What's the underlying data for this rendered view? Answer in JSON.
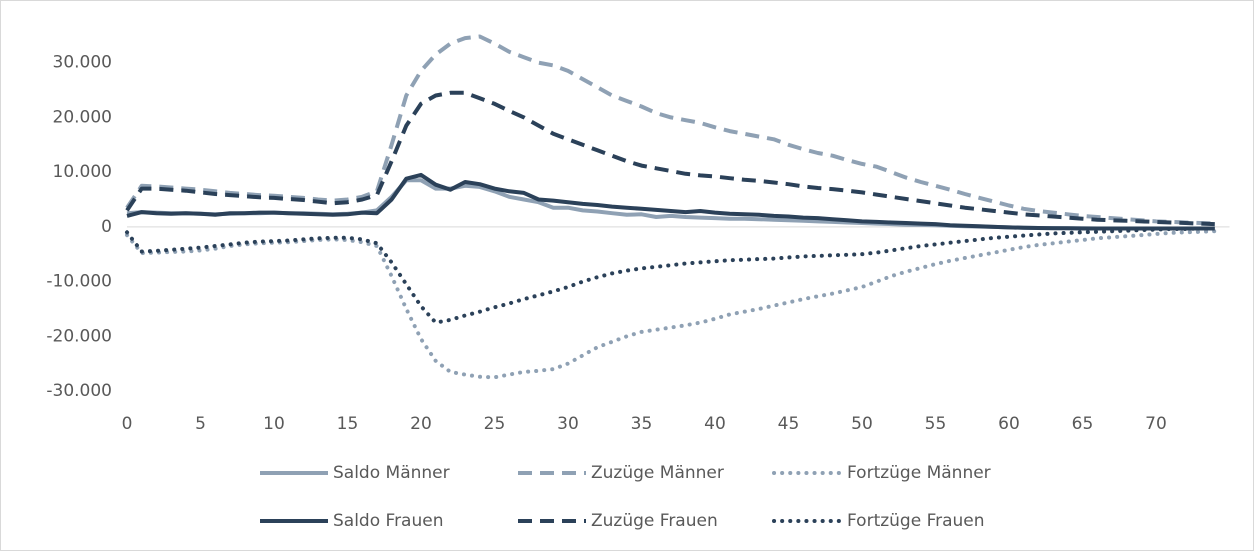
{
  "chart_data": {
    "type": "line",
    "x": [
      0,
      1,
      2,
      3,
      4,
      5,
      6,
      7,
      8,
      9,
      10,
      11,
      12,
      13,
      14,
      15,
      16,
      17,
      18,
      19,
      20,
      21,
      22,
      23,
      24,
      25,
      26,
      27,
      28,
      29,
      30,
      31,
      32,
      33,
      34,
      35,
      36,
      37,
      38,
      39,
      40,
      41,
      42,
      43,
      44,
      45,
      46,
      47,
      48,
      49,
      50,
      51,
      52,
      53,
      54,
      55,
      56,
      57,
      58,
      59,
      60,
      61,
      62,
      63,
      64,
      65,
      66,
      67,
      68,
      69,
      70,
      71,
      72,
      73,
      74
    ],
    "xlim": [
      0,
      75
    ],
    "xticks": [
      0,
      5,
      10,
      15,
      20,
      25,
      30,
      35,
      40,
      45,
      50,
      55,
      60,
      65,
      70
    ],
    "ylim": [
      -30000,
      40000
    ],
    "yticks": [
      {
        "value": -30000,
        "label": "-30.000"
      },
      {
        "value": -20000,
        "label": "-20.000"
      },
      {
        "value": -10000,
        "label": "-10.000"
      },
      0,
      {
        "value": 10000,
        "label": "10.000"
      },
      {
        "value": 20000,
        "label": "20.000"
      },
      {
        "value": 30000,
        "label": "30.000"
      }
    ],
    "grid": false,
    "legend": "bottom",
    "series": [
      {
        "name": "Saldo Männer",
        "color": "#8fa1b4",
        "dash": "solid",
        "values": [
          2500,
          2700,
          2600,
          2500,
          2500,
          2400,
          2300,
          2400,
          2500,
          2500,
          2600,
          2500,
          2500,
          2400,
          2300,
          2400,
          2600,
          3000,
          5500,
          8500,
          8500,
          7000,
          7000,
          7500,
          7300,
          6500,
          5500,
          5000,
          4500,
          3500,
          3500,
          3000,
          2800,
          2500,
          2200,
          2300,
          1800,
          2000,
          1800,
          1700,
          1600,
          1500,
          1500,
          1400,
          1300,
          1200,
          1100,
          1000,
          900,
          800,
          700,
          600,
          500,
          400,
          350,
          300,
          200,
          100,
          50,
          0,
          -100,
          -150,
          -200,
          -200,
          -250,
          -250,
          -300,
          -300,
          -300,
          -300,
          -300,
          -300,
          -300,
          -300,
          -300
        ]
      },
      {
        "name": "Zuzüge Männer",
        "color": "#8fa1b4",
        "dash": "dashed",
        "values": [
          3500,
          7500,
          7400,
          7200,
          7000,
          6800,
          6500,
          6200,
          6000,
          5800,
          5700,
          5500,
          5300,
          5000,
          4800,
          5000,
          5500,
          6500,
          15000,
          24000,
          28500,
          31500,
          33500,
          34500,
          34800,
          33500,
          32000,
          31000,
          30000,
          29500,
          28500,
          27000,
          25500,
          24000,
          23000,
          22000,
          20800,
          20000,
          19500,
          19000,
          18200,
          17500,
          17000,
          16500,
          16000,
          15000,
          14200,
          13500,
          13000,
          12200,
          11500,
          11000,
          10000,
          9000,
          8200,
          7500,
          6800,
          6000,
          5300,
          4600,
          3900,
          3300,
          2900,
          2600,
          2300,
          2000,
          1800,
          1600,
          1400,
          1200,
          1000,
          900,
          800,
          700,
          600
        ]
      },
      {
        "name": "Fortzüge Männer",
        "color": "#8fa1b4",
        "dash": "dotted",
        "values": [
          -1500,
          -4800,
          -4700,
          -4600,
          -4500,
          -4300,
          -4000,
          -3500,
          -3200,
          -3000,
          -2900,
          -2800,
          -2600,
          -2400,
          -2300,
          -2400,
          -2800,
          -3500,
          -9000,
          -15000,
          -20500,
          -24500,
          -26500,
          -27000,
          -27400,
          -27500,
          -27000,
          -26500,
          -26300,
          -26000,
          -25000,
          -23500,
          -22000,
          -21000,
          -20000,
          -19200,
          -18800,
          -18400,
          -18000,
          -17500,
          -16800,
          -16000,
          -15500,
          -15000,
          -14400,
          -13800,
          -13200,
          -12700,
          -12200,
          -11600,
          -11000,
          -10000,
          -9000,
          -8200,
          -7500,
          -6800,
          -6200,
          -5700,
          -5200,
          -4700,
          -4200,
          -3700,
          -3300,
          -3000,
          -2700,
          -2400,
          -2100,
          -1900,
          -1700,
          -1500,
          -1300,
          -1100,
          -1000,
          -900,
          -800
        ]
      },
      {
        "name": "Saldo Frauen",
        "color": "#2b4159",
        "dash": "solid",
        "values": [
          2000,
          2700,
          2500,
          2400,
          2500,
          2400,
          2200,
          2500,
          2500,
          2600,
          2600,
          2500,
          2400,
          2300,
          2200,
          2300,
          2600,
          2500,
          5000,
          8800,
          9500,
          7700,
          6800,
          8200,
          7800,
          7000,
          6500,
          6200,
          5000,
          4800,
          4500,
          4200,
          4000,
          3700,
          3500,
          3300,
          3100,
          2900,
          2700,
          2900,
          2600,
          2400,
          2300,
          2200,
          2000,
          1900,
          1700,
          1600,
          1400,
          1200,
          1000,
          900,
          800,
          700,
          600,
          500,
          300,
          200,
          100,
          0,
          -100,
          -150,
          -200,
          -250,
          -250,
          -300,
          -300,
          -300,
          -300,
          -300,
          -300,
          -300,
          -300,
          -300,
          -300
        ]
      },
      {
        "name": "Zuzüge Frauen",
        "color": "#2b4159",
        "dash": "dashed",
        "values": [
          3000,
          7000,
          7000,
          6800,
          6600,
          6300,
          6000,
          5800,
          5600,
          5400,
          5300,
          5100,
          4900,
          4600,
          4300,
          4500,
          5000,
          5800,
          12000,
          18500,
          22500,
          24000,
          24500,
          24500,
          23500,
          22500,
          21200,
          20000,
          18500,
          17000,
          16000,
          15000,
          14000,
          13000,
          12000,
          11200,
          10700,
          10200,
          9700,
          9400,
          9200,
          8900,
          8600,
          8400,
          8100,
          7800,
          7400,
          7100,
          6900,
          6600,
          6300,
          5900,
          5500,
          5100,
          4700,
          4300,
          3900,
          3500,
          3200,
          2900,
          2600,
          2300,
          2100,
          1900,
          1700,
          1500,
          1300,
          1200,
          1100,
          1000,
          900,
          800,
          700,
          600,
          500
        ]
      },
      {
        "name": "Fortzüge Frauen",
        "color": "#2b4159",
        "dash": "dotted",
        "values": [
          -1000,
          -4500,
          -4400,
          -4200,
          -4000,
          -3800,
          -3500,
          -3200,
          -2900,
          -2700,
          -2600,
          -2500,
          -2300,
          -2100,
          -2000,
          -2000,
          -2300,
          -3000,
          -6500,
          -10500,
          -14500,
          -17500,
          -17000,
          -16200,
          -15500,
          -14700,
          -14000,
          -13200,
          -12500,
          -11800,
          -11000,
          -10000,
          -9200,
          -8500,
          -8000,
          -7600,
          -7300,
          -7000,
          -6700,
          -6500,
          -6300,
          -6100,
          -6000,
          -5900,
          -5800,
          -5600,
          -5400,
          -5300,
          -5200,
          -5100,
          -5000,
          -4700,
          -4300,
          -3900,
          -3500,
          -3200,
          -2900,
          -2600,
          -2300,
          -2000,
          -1800,
          -1600,
          -1400,
          -1200,
          -1100,
          -1000,
          -900,
          -800,
          -700,
          -600,
          -500,
          -400,
          -400,
          -300,
          -300
        ]
      }
    ]
  }
}
